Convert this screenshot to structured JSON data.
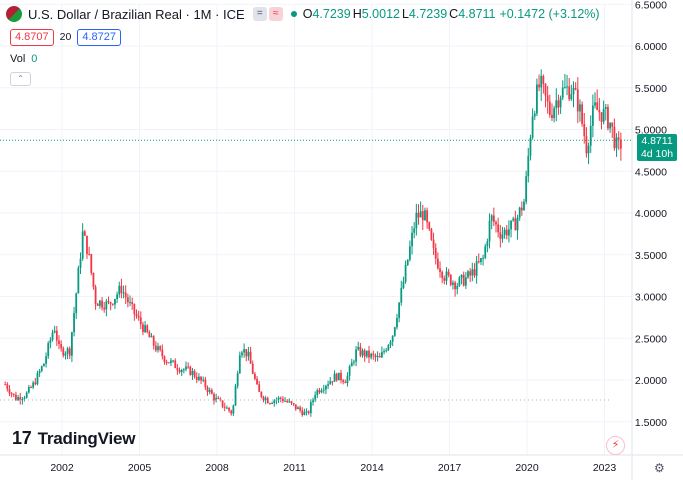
{
  "header": {
    "title": "U.S. Dollar / Brazilian Real · 1M · ICE",
    "open_label": "O",
    "open": "4.7239",
    "high_label": "H",
    "high": "5.0012",
    "low_label": "L",
    "low": "4.7239",
    "close_label": "C",
    "close": "4.8711",
    "change": "+0.1472 (+3.12%)"
  },
  "price_selector": {
    "sell": "4.8707",
    "spread": "20",
    "buy": "4.8727"
  },
  "volume": {
    "label": "Vol",
    "value": "0"
  },
  "price_tag": {
    "price": "4.8711",
    "countdown": "4d 10h"
  },
  "brand": {
    "name": "TradingView"
  },
  "colors": {
    "up": "#089981",
    "down": "#f23645",
    "accent": "#2962ff"
  },
  "icons": {
    "flag": "us-brazil-flag-icon",
    "flash": "lightning-icon",
    "settings": "gear-icon"
  },
  "chart_data": {
    "type": "candlestick",
    "title": "U.S. Dollar / Brazilian Real · 1M · ICE",
    "x_tick_labels": [
      "2002",
      "2005",
      "2008",
      "2011",
      "2014",
      "2017",
      "2020",
      "2023"
    ],
    "y_tick_labels": [
      "1.5000",
      "2.0000",
      "2.5000",
      "3.0000",
      "3.5000",
      "4.0000",
      "4.5000",
      "5.0000",
      "5.5000",
      "6.0000",
      "6.5000"
    ],
    "ylim": [
      1.5,
      6.5
    ],
    "x_range": [
      1999.8,
      2024.8
    ],
    "last_price": 4.8711,
    "min_price_line": 1.76,
    "grid": true,
    "series": [
      {
        "t": 1999.8,
        "c": 1.95
      },
      {
        "t": 2000.2,
        "c": 1.78
      },
      {
        "t": 2000.6,
        "c": 1.82
      },
      {
        "t": 2000.9,
        "c": 1.95
      },
      {
        "t": 2001.3,
        "c": 2.2
      },
      {
        "t": 2001.7,
        "c": 2.65
      },
      {
        "t": 2001.9,
        "c": 2.35
      },
      {
        "t": 2002.3,
        "c": 2.35
      },
      {
        "t": 2002.5,
        "c": 2.9
      },
      {
        "t": 2002.8,
        "c": 3.75
      },
      {
        "t": 2003.0,
        "c": 3.55
      },
      {
        "t": 2003.3,
        "c": 2.95
      },
      {
        "t": 2003.8,
        "c": 2.9
      },
      {
        "t": 2004.3,
        "c": 3.1
      },
      {
        "t": 2004.7,
        "c": 2.85
      },
      {
        "t": 2005.2,
        "c": 2.6
      },
      {
        "t": 2005.6,
        "c": 2.4
      },
      {
        "t": 2006.0,
        "c": 2.25
      },
      {
        "t": 2006.5,
        "c": 2.15
      },
      {
        "t": 2007.0,
        "c": 2.1
      },
      {
        "t": 2007.5,
        "c": 1.95
      },
      {
        "t": 2007.9,
        "c": 1.78
      },
      {
        "t": 2008.3,
        "c": 1.68
      },
      {
        "t": 2008.6,
        "c": 1.6
      },
      {
        "t": 2008.9,
        "c": 2.4
      },
      {
        "t": 2009.2,
        "c": 2.3
      },
      {
        "t": 2009.6,
        "c": 1.85
      },
      {
        "t": 2010.0,
        "c": 1.75
      },
      {
        "t": 2010.5,
        "c": 1.78
      },
      {
        "t": 2011.0,
        "c": 1.68
      },
      {
        "t": 2011.5,
        "c": 1.58
      },
      {
        "t": 2011.8,
        "c": 1.85
      },
      {
        "t": 2012.2,
        "c": 1.95
      },
      {
        "t": 2012.6,
        "c": 2.05
      },
      {
        "t": 2013.0,
        "c": 2.0
      },
      {
        "t": 2013.4,
        "c": 2.35
      },
      {
        "t": 2013.8,
        "c": 2.3
      },
      {
        "t": 2014.3,
        "c": 2.25
      },
      {
        "t": 2014.8,
        "c": 2.55
      },
      {
        "t": 2015.2,
        "c": 3.15
      },
      {
        "t": 2015.7,
        "c": 3.95
      },
      {
        "t": 2016.0,
        "c": 4.0
      },
      {
        "t": 2016.4,
        "c": 3.5
      },
      {
        "t": 2016.8,
        "c": 3.25
      },
      {
        "t": 2017.3,
        "c": 3.15
      },
      {
        "t": 2017.8,
        "c": 3.25
      },
      {
        "t": 2018.3,
        "c": 3.45
      },
      {
        "t": 2018.6,
        "c": 3.95
      },
      {
        "t": 2019.0,
        "c": 3.75
      },
      {
        "t": 2019.5,
        "c": 3.85
      },
      {
        "t": 2019.9,
        "c": 4.15
      },
      {
        "t": 2020.2,
        "c": 5.2
      },
      {
        "t": 2020.5,
        "c": 5.55
      },
      {
        "t": 2020.9,
        "c": 5.2
      },
      {
        "t": 2021.3,
        "c": 5.45
      },
      {
        "t": 2021.7,
        "c": 5.5
      },
      {
        "t": 2022.0,
        "c": 5.3
      },
      {
        "t": 2022.3,
        "c": 4.8
      },
      {
        "t": 2022.6,
        "c": 5.25
      },
      {
        "t": 2022.9,
        "c": 5.2
      },
      {
        "t": 2023.2,
        "c": 5.1
      },
      {
        "t": 2023.5,
        "c": 4.75
      },
      {
        "t": 2023.7,
        "c": 4.87
      }
    ]
  }
}
